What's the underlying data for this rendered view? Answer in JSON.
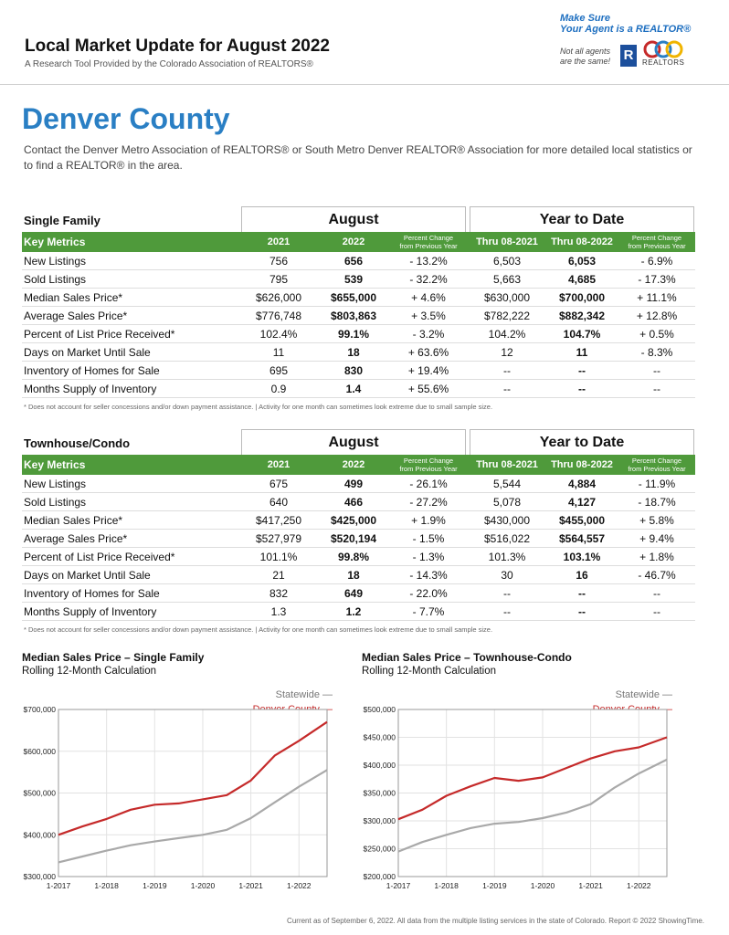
{
  "header": {
    "title": "Local Market Update for August 2022",
    "subtitle": "A Research Tool Provided by the Colorado Association of REALTORS®"
  },
  "brand": {
    "tagline_1": "Make Sure",
    "tagline_2": "Your Agent is a REALTOR®",
    "note_1": "Not all agents",
    "note_2": "are the same!",
    "r_mark": "R",
    "car_name": "REALTORS"
  },
  "county": "Denver County",
  "intro": "Contact the Denver Metro Association of REALTORS® or South Metro Denver REALTOR® Association for more detailed local statistics or to find a REALTOR® in the area.",
  "tables": [
    {
      "title": "Single Family",
      "group_aug": "August",
      "group_ytd": "Year to Date",
      "head": {
        "label": "Key Metrics",
        "a1": "2021",
        "a2": "2022",
        "pct_1": "Percent Change",
        "pct_2": "from Previous Year",
        "y1": "Thru 08-2021",
        "y2": "Thru 08-2022"
      },
      "rows": [
        [
          "New Listings",
          "756",
          "656",
          "- 13.2%",
          "6,503",
          "6,053",
          "- 6.9%"
        ],
        [
          "Sold Listings",
          "795",
          "539",
          "- 32.2%",
          "5,663",
          "4,685",
          "- 17.3%"
        ],
        [
          "Median Sales Price*",
          "$626,000",
          "$655,000",
          "+ 4.6%",
          "$630,000",
          "$700,000",
          "+ 11.1%"
        ],
        [
          "Average Sales Price*",
          "$776,748",
          "$803,863",
          "+ 3.5%",
          "$782,222",
          "$882,342",
          "+ 12.8%"
        ],
        [
          "Percent of List Price Received*",
          "102.4%",
          "99.1%",
          "- 3.2%",
          "104.2%",
          "104.7%",
          "+ 0.5%"
        ],
        [
          "Days on Market Until Sale",
          "11",
          "18",
          "+ 63.6%",
          "12",
          "11",
          "- 8.3%"
        ],
        [
          "Inventory of Homes for Sale",
          "695",
          "830",
          "+ 19.4%",
          "--",
          "--",
          "--"
        ],
        [
          "Months Supply of Inventory",
          "0.9",
          "1.4",
          "+ 55.6%",
          "--",
          "--",
          "--"
        ]
      ],
      "note": "* Does not account for seller concessions and/or down payment assistance.  |  Activity for one month can sometimes look extreme due to small sample size."
    },
    {
      "title": "Townhouse/Condo",
      "group_aug": "August",
      "group_ytd": "Year to Date",
      "head": {
        "label": "Key Metrics",
        "a1": "2021",
        "a2": "2022",
        "pct_1": "Percent Change",
        "pct_2": "from Previous Year",
        "y1": "Thru 08-2021",
        "y2": "Thru 08-2022"
      },
      "rows": [
        [
          "New Listings",
          "675",
          "499",
          "- 26.1%",
          "5,544",
          "4,884",
          "- 11.9%"
        ],
        [
          "Sold Listings",
          "640",
          "466",
          "- 27.2%",
          "5,078",
          "4,127",
          "- 18.7%"
        ],
        [
          "Median Sales Price*",
          "$417,250",
          "$425,000",
          "+ 1.9%",
          "$430,000",
          "$455,000",
          "+ 5.8%"
        ],
        [
          "Average Sales Price*",
          "$527,979",
          "$520,194",
          "- 1.5%",
          "$516,022",
          "$564,557",
          "+ 9.4%"
        ],
        [
          "Percent of List Price Received*",
          "101.1%",
          "99.8%",
          "- 1.3%",
          "101.3%",
          "103.1%",
          "+ 1.8%"
        ],
        [
          "Days on Market Until Sale",
          "21",
          "18",
          "- 14.3%",
          "30",
          "16",
          "- 46.7%"
        ],
        [
          "Inventory of Homes for Sale",
          "832",
          "649",
          "- 22.0%",
          "--",
          "--",
          "--"
        ],
        [
          "Months Supply of Inventory",
          "1.3",
          "1.2",
          "- 7.7%",
          "--",
          "--",
          "--"
        ]
      ],
      "note": "* Does not account for seller concessions and/or down payment assistance.  |  Activity for one month can sometimes look extreme due to small sample size."
    }
  ],
  "chart_data": [
    {
      "type": "line",
      "title": "Median Sales Price – Single Family",
      "subtitle": "Rolling 12-Month Calculation",
      "x_ticks": [
        "1-2017",
        "1-2018",
        "1-2019",
        "1-2020",
        "1-2021",
        "1-2022"
      ],
      "y_ticks": [
        "$300,000",
        "$400,000",
        "$500,000",
        "$600,000",
        "$700,000"
      ],
      "ylim": [
        300000,
        700000
      ],
      "x_range": [
        "1-2017",
        "8-2022"
      ],
      "grid": true,
      "legend_placement": "top-right",
      "series": [
        {
          "name": "Statewide",
          "color": "#a9a9a9",
          "x": [
            "1-2017",
            "7-2017",
            "1-2018",
            "7-2018",
            "1-2019",
            "7-2019",
            "1-2020",
            "7-2020",
            "1-2021",
            "7-2021",
            "1-2022",
            "8-2022"
          ],
          "values": [
            334000,
            348000,
            362000,
            375000,
            384000,
            392000,
            400000,
            412000,
            440000,
            478000,
            515000,
            555000
          ]
        },
        {
          "name": "Denver County",
          "color": "#c52a2a",
          "x": [
            "1-2017",
            "7-2017",
            "1-2018",
            "7-2018",
            "1-2019",
            "7-2019",
            "1-2020",
            "7-2020",
            "1-2021",
            "7-2021",
            "1-2022",
            "8-2022"
          ],
          "values": [
            400000,
            420000,
            438000,
            460000,
            472000,
            475000,
            485000,
            495000,
            530000,
            590000,
            625000,
            670000
          ]
        }
      ]
    },
    {
      "type": "line",
      "title": "Median Sales Price – Townhouse-Condo",
      "subtitle": "Rolling 12-Month Calculation",
      "x_ticks": [
        "1-2017",
        "1-2018",
        "1-2019",
        "1-2020",
        "1-2021",
        "1-2022"
      ],
      "y_ticks": [
        "$200,000",
        "$250,000",
        "$300,000",
        "$350,000",
        "$400,000",
        "$450,000",
        "$500,000"
      ],
      "ylim": [
        200000,
        500000
      ],
      "x_range": [
        "1-2017",
        "8-2022"
      ],
      "grid": true,
      "legend_placement": "top-right",
      "series": [
        {
          "name": "Statewide",
          "color": "#a9a9a9",
          "x": [
            "1-2017",
            "7-2017",
            "1-2018",
            "7-2018",
            "1-2019",
            "7-2019",
            "1-2020",
            "7-2020",
            "1-2021",
            "7-2021",
            "1-2022",
            "8-2022"
          ],
          "values": [
            245000,
            262000,
            275000,
            287000,
            295000,
            298000,
            305000,
            315000,
            330000,
            360000,
            385000,
            410000
          ]
        },
        {
          "name": "Denver County",
          "color": "#c52a2a",
          "x": [
            "1-2017",
            "7-2017",
            "1-2018",
            "7-2018",
            "1-2019",
            "7-2019",
            "1-2020",
            "7-2020",
            "1-2021",
            "7-2021",
            "1-2022",
            "8-2022"
          ],
          "values": [
            303000,
            320000,
            345000,
            362000,
            377000,
            372000,
            378000,
            395000,
            412000,
            425000,
            432000,
            450000
          ]
        }
      ]
    }
  ],
  "footer": "Current as of September 6, 2022. All data from the multiple listing services in the state of Colorado. Report © 2022 ShowingTime."
}
